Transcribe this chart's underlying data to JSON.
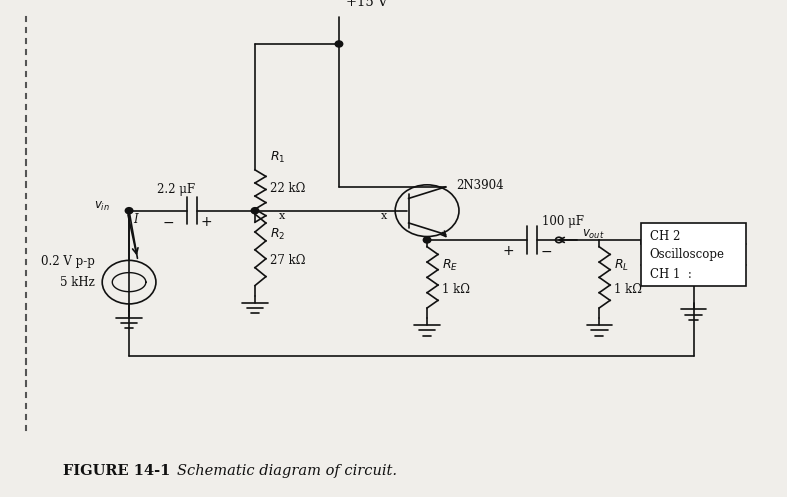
{
  "bg_color": "#f0eeea",
  "line_color": "#111111",
  "title": "FIGURE 14-1",
  "subtitle": "Schematic diagram of circuit.",
  "fig_width": 7.87,
  "fig_height": 4.97,
  "labels": {
    "vcc": "+15 V",
    "R1_name": "$R_1$",
    "R1_val": "22 kΩ",
    "R2_name": "$R_2$",
    "R2_val": "27 kΩ",
    "RE_name": "$R_E$",
    "RE_val": "1 kΩ",
    "RL_name": "$R_L$",
    "RL_val": "1 kΩ",
    "C1_val": "2.2 μF",
    "C2_val": "100 μF",
    "transistor": "2N3904",
    "vin_label": "$v_{in}$",
    "vout_label": "$v_{out}$",
    "source_val1": "0.2 V p-p",
    "source_val2": "5 kHz",
    "scope_ch1": "CH 1  :",
    "scope_ch2": "CH 2",
    "scope_label": "Oscilloscope",
    "I_label": "I",
    "x_mark": "x"
  },
  "xlim": [
    0,
    9
  ],
  "ylim": [
    0,
    6.5
  ]
}
